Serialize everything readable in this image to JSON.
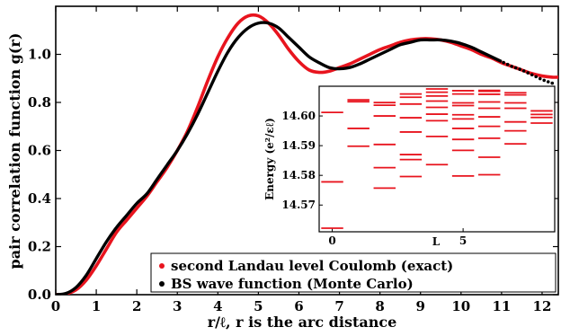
{
  "chart_data": [
    {
      "type": "line",
      "xlabel": "r/ℓ, r is the arc distance",
      "ylabel": "pair correlation function g(r)",
      "xlim": [
        0,
        12.4
      ],
      "ylim": [
        0,
        1.2
      ],
      "xticks": [
        "0",
        "1",
        "2",
        "3",
        "4",
        "5",
        "6",
        "7",
        "8",
        "9",
        "10",
        "11",
        "12"
      ],
      "yticks": [
        "0.0",
        "0.2",
        "0.4",
        "0.6",
        "0.8",
        "1.0"
      ],
      "grid": false,
      "legend_position": "bottom-right",
      "series": [
        {
          "name": "second Landau level Coulomb (exact)",
          "color": "#e8141e",
          "marker": "red-dot",
          "x": [
            0,
            0.25,
            0.5,
            0.75,
            1,
            1.25,
            1.5,
            1.75,
            2,
            2.25,
            2.5,
            2.75,
            3,
            3.25,
            3.5,
            3.75,
            4,
            4.25,
            4.5,
            4.75,
            5,
            5.25,
            5.5,
            5.75,
            6,
            6.25,
            6.5,
            6.75,
            7,
            7.25,
            7.5,
            7.75,
            8,
            8.25,
            8.5,
            8.75,
            9,
            9.25,
            9.5,
            9.75,
            10,
            10.25,
            10.5,
            10.75,
            11,
            11.25,
            11.5,
            11.75,
            12,
            12.25,
            12.4
          ],
          "y": [
            0,
            0.003,
            0.02,
            0.06,
            0.12,
            0.19,
            0.26,
            0.31,
            0.36,
            0.41,
            0.47,
            0.53,
            0.6,
            0.68,
            0.78,
            0.89,
            0.99,
            1.07,
            1.13,
            1.16,
            1.16,
            1.13,
            1.08,
            1.02,
            0.97,
            0.935,
            0.925,
            0.93,
            0.945,
            0.96,
            0.98,
            1.0,
            1.02,
            1.035,
            1.05,
            1.06,
            1.065,
            1.065,
            1.06,
            1.05,
            1.035,
            1.02,
            1.0,
            0.985,
            0.965,
            0.95,
            0.935,
            0.92,
            0.91,
            0.905,
            0.905
          ]
        },
        {
          "name": "BS wave function (Monte Carlo)",
          "color": "#000000",
          "marker": "black-dot",
          "x": [
            0,
            0.25,
            0.5,
            0.75,
            1,
            1.25,
            1.5,
            1.75,
            2,
            2.25,
            2.5,
            2.75,
            3,
            3.25,
            3.5,
            3.75,
            4,
            4.25,
            4.5,
            4.75,
            5,
            5.25,
            5.5,
            5.75,
            6,
            6.25,
            6.5,
            6.75,
            7,
            7.25,
            7.5,
            7.75,
            8,
            8.25,
            8.5,
            8.75,
            9,
            9.25,
            9.5,
            9.75,
            10,
            10.25,
            10.5,
            10.75,
            11,
            11.25,
            11.5,
            11.75,
            12,
            12.25
          ],
          "y": [
            0,
            0.005,
            0.03,
            0.08,
            0.15,
            0.22,
            0.28,
            0.33,
            0.38,
            0.42,
            0.48,
            0.54,
            0.6,
            0.67,
            0.75,
            0.84,
            0.93,
            1.01,
            1.07,
            1.11,
            1.13,
            1.13,
            1.11,
            1.07,
            1.03,
            0.99,
            0.965,
            0.945,
            0.94,
            0.945,
            0.96,
            0.98,
            1.0,
            1.02,
            1.04,
            1.05,
            1.06,
            1.06,
            1.06,
            1.055,
            1.045,
            1.03,
            1.01,
            0.99,
            0.97,
            0.95,
            0.935,
            0.915,
            0.895,
            0.88
          ]
        }
      ]
    },
    {
      "type": "scatter",
      "marker": "horizontal-dash",
      "xlabel": "L",
      "ylabel": "Energy (e²/εℓ)",
      "xlim": [
        -0.5,
        8.5
      ],
      "ylim": [
        14.561,
        14.61
      ],
      "xticks": [
        "0",
        "5"
      ],
      "yticks": [
        "14.57",
        "14.58",
        "14.59",
        "14.60"
      ],
      "color": "#e8141e",
      "x": [
        0,
        0,
        0,
        1,
        1,
        1,
        1,
        2,
        2,
        2,
        2,
        2,
        2,
        3,
        3,
        3,
        3,
        3,
        3,
        3,
        3,
        4,
        4,
        4,
        4,
        4,
        4,
        4,
        4,
        4,
        5,
        5,
        5,
        5,
        5,
        5,
        5,
        5,
        5,
        5,
        6,
        6,
        6,
        6,
        6,
        6,
        6,
        6,
        6,
        6,
        7,
        7,
        7,
        7,
        7,
        7,
        7,
        8,
        8,
        8,
        8
      ],
      "y": [
        14.5622,
        14.5778,
        14.6012,
        14.5898,
        14.5958,
        14.6048,
        14.6054,
        14.5757,
        14.5826,
        14.5904,
        14.6,
        14.6036,
        14.6045,
        14.5796,
        14.5853,
        14.587,
        14.5946,
        14.5994,
        14.604,
        14.6063,
        14.6074,
        14.5836,
        14.5931,
        14.5984,
        14.6006,
        14.6029,
        14.605,
        14.6067,
        14.608,
        14.6091,
        14.5798,
        14.5884,
        14.5921,
        14.5958,
        14.599,
        14.6004,
        14.6035,
        14.6044,
        14.6074,
        14.6085,
        14.5802,
        14.5861,
        14.5925,
        14.5965,
        14.5997,
        14.6026,
        14.6047,
        14.6073,
        14.6083,
        14.6086,
        14.5906,
        14.595,
        14.598,
        14.6026,
        14.6044,
        14.6071,
        14.6078,
        14.5976,
        14.5995,
        14.6005,
        14.6017
      ]
    }
  ]
}
